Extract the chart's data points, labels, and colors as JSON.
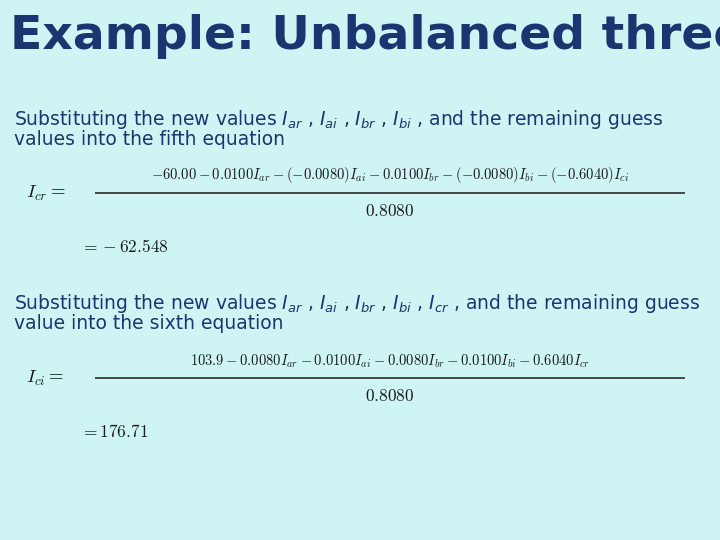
{
  "background_color": "#cef4f4",
  "title": "Example: Unbalanced three phase load",
  "title_color": "#1a3570",
  "title_fontsize": 34,
  "text_color": "#1a3570",
  "formula_color": "#1a1a1a",
  "body_fontsize": 13.5,
  "formula_fontsize": 10.5,
  "para1_line1": "Substituting the new values $I_{ar}$ , $I_{ai}$ , $I_{br}$ , $I_{bi}$ , and the remaining guess",
  "para1_line2": "values into the fifth equation",
  "formula1_lhs": "$I_{cr}$",
  "formula1_num": "$-60.00-0.0100I_{ar}-(-0.0080)I_{ai}-0.0100I_{br}-(-0.0080)I_{bi}-(-0.6040)I_{ci}$",
  "formula1_den": "$0.8080$",
  "formula1_result": "$=-62.548$",
  "para2_line1": "Substituting the new values $I_{ar}$ , $I_{ai}$ , $I_{br}$ , $I_{bi}$ , $I_{cr}$ , and the remaining guess",
  "para2_line2": "value into the sixth equation",
  "formula2_lhs": "$I_{ci}$",
  "formula2_num": "$103.9-0.0080I_{ar}-0.0100I_{ai}-0.0080I_{br}-0.0100I_{bi}-0.6040I_{cr}$",
  "formula2_den": "$0.8080$",
  "formula2_result": "$=176.71$"
}
